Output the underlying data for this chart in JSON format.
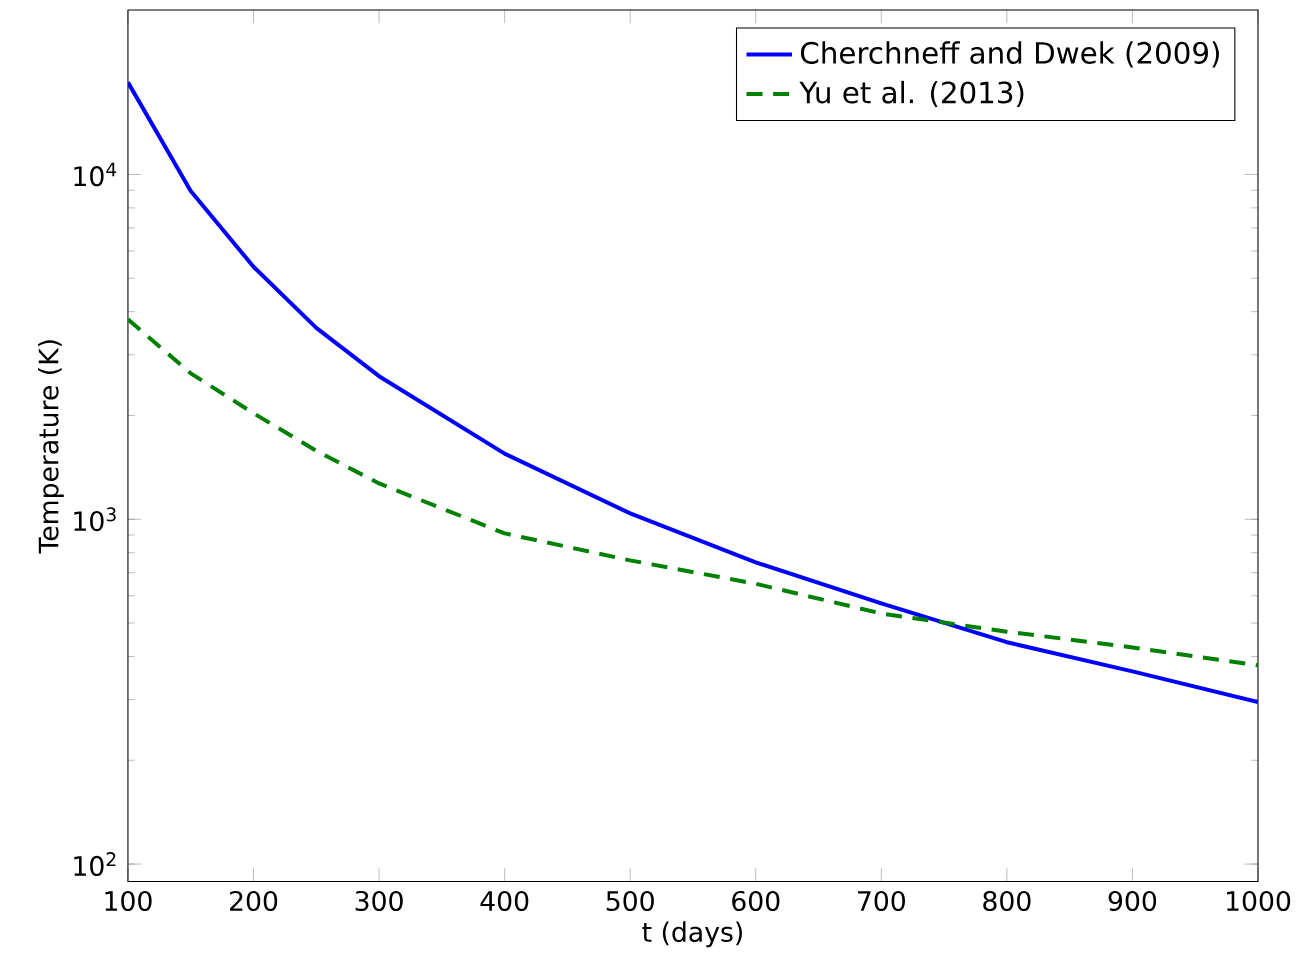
{
  "chart_data": {
    "type": "line",
    "xlabel": "t (days)",
    "ylabel": "Temperature (K)",
    "log": "y",
    "legend": "top right",
    "x": [
      100,
      150,
      200,
      250,
      300,
      400,
      500,
      600,
      700,
      800,
      900,
      1000
    ],
    "series": [
      {
        "name": "Cherchneff and Dwek (2009)",
        "color": "#0000ff",
        "line_style": "solid",
        "values": [
          18500,
          8950,
          5400,
          3590,
          2600,
          1550,
          1040,
          750,
          570,
          440,
          362,
          295
        ]
      },
      {
        "name": "Yu et al. (2013)",
        "color": "#008000",
        "line_style": "dashed",
        "values": [
          3800,
          2650,
          2030,
          1580,
          1270,
          910,
          760,
          650,
          533,
          472,
          425,
          377
        ]
      }
    ],
    "xlim": [
      100,
      1000
    ],
    "ylim": [
      89,
      30000
    ],
    "xticks": [
      100,
      200,
      300,
      400,
      500,
      600,
      700,
      800,
      900,
      1000
    ],
    "yticks": [
      {
        "value": 100,
        "label": "10$^{2}$"
      },
      {
        "value": 1000,
        "label": "10$^{3}$"
      },
      {
        "value": 10000,
        "label": "10$^{4}$"
      }
    ]
  }
}
